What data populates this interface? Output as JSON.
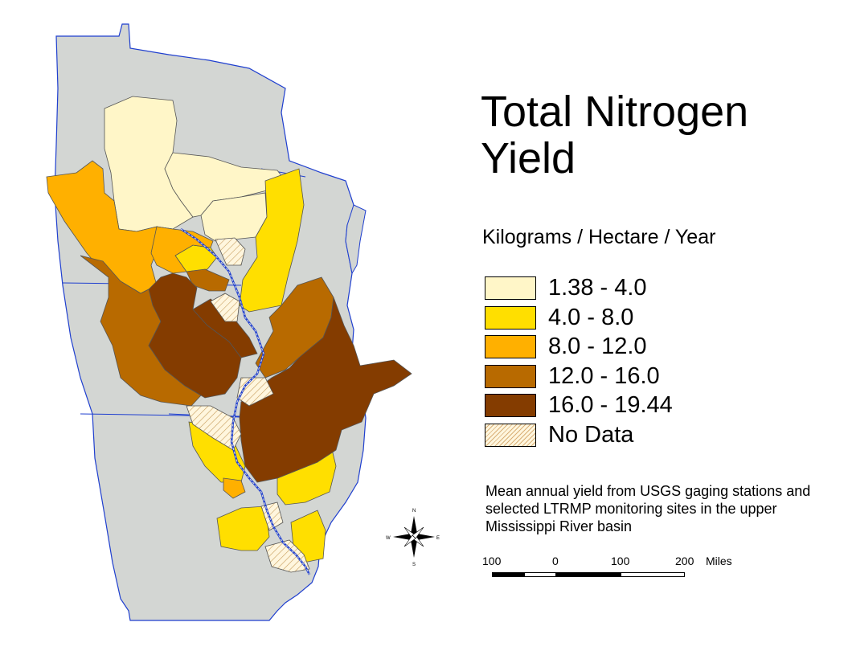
{
  "map": {
    "title_line1": "Total Nitrogen",
    "title_line2": "Yield",
    "units": "Kilograms / Hectare / Year",
    "legend": [
      {
        "label": "1.38 - 4.0",
        "color": "#FFF6C8"
      },
      {
        "label": "4.0 - 8.0",
        "color": "#FFDF00"
      },
      {
        "label": "8.0 - 12.0",
        "color": "#FFB000"
      },
      {
        "label": "12.0 - 16.0",
        "color": "#B86A00"
      },
      {
        "label": "16.0 - 19.44",
        "color": "#843C00"
      },
      {
        "label": "No Data",
        "color": "#FFF6DE",
        "pattern": "diagonal-hatch"
      }
    ],
    "caption": "Mean annual yield from USGS gaging stations and selected LTRMP monitoring sites in the upper Mississippi River basin",
    "scale": {
      "labels": [
        "100",
        "0",
        "100",
        "200"
      ],
      "unit": "Miles"
    },
    "compass": {
      "n": "N",
      "s": "S",
      "e": "E",
      "w": "W"
    },
    "colors": {
      "state_fill": "#D3D6D3",
      "state_border": "#1F3FCF",
      "river": "#7A8FC8"
    }
  }
}
